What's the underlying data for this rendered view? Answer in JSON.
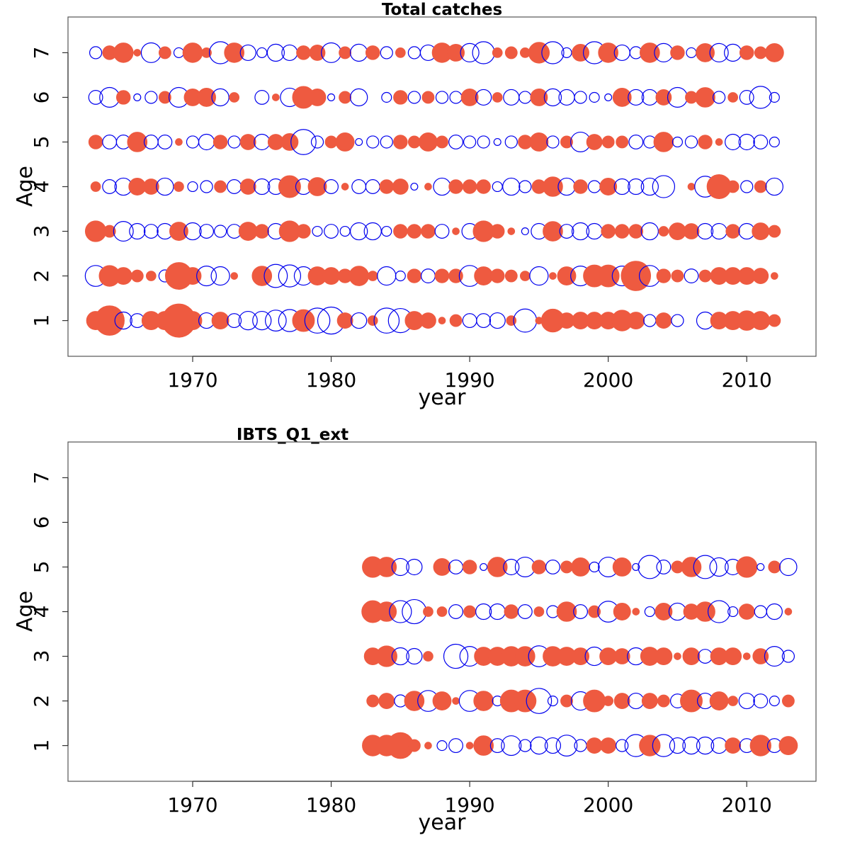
{
  "chart_data": [
    {
      "type": "scatter",
      "subtype": "bubble-residuals",
      "title": "Total catches",
      "xlabel": "year",
      "ylabel": "Age",
      "xlim": [
        1961,
        2015
      ],
      "ylim": [
        0.2,
        7.8
      ],
      "x_ticks": [
        1970,
        1980,
        1990,
        2000,
        2010
      ],
      "y_ticks": [
        1,
        2,
        3,
        4,
        5,
        6,
        7
      ],
      "positive_color": "#EE5A40",
      "negative_color": "#0000EE",
      "years": [
        1963,
        1964,
        1965,
        1966,
        1967,
        1968,
        1969,
        1970,
        1971,
        1972,
        1973,
        1974,
        1975,
        1976,
        1977,
        1978,
        1979,
        1980,
        1981,
        1982,
        1983,
        1984,
        1985,
        1986,
        1987,
        1988,
        1989,
        1990,
        1991,
        1992,
        1993,
        1994,
        1995,
        1996,
        1997,
        1998,
        1999,
        2000,
        2001,
        2002,
        2003,
        2004,
        2005,
        2006,
        2007,
        2008,
        2009,
        2010,
        2011,
        2012
      ],
      "ages": [
        1,
        2,
        3,
        4,
        5,
        6,
        7
      ],
      "residuals_by_age": {
        "1": [
          0.7,
          1.8,
          -0.6,
          -0.4,
          0.7,
          0.7,
          2.3,
          0.7,
          -0.5,
          0.6,
          -0.4,
          -0.7,
          -0.7,
          -0.9,
          -1.0,
          1.0,
          -1.3,
          -1.5,
          0.5,
          -0.5,
          0.2,
          -1.3,
          -1.2,
          0.7,
          0.5,
          0.1,
          0.3,
          -0.4,
          -0.4,
          -0.5,
          0.2,
          -1.1,
          0.1,
          1.1,
          0.5,
          0.6,
          0.6,
          0.6,
          0.9,
          0.6,
          -0.3,
          0.5,
          -0.3,
          0.0,
          -0.6,
          0.6,
          0.7,
          0.8,
          0.7,
          0.3
        ],
        "2": [
          -0.9,
          0.9,
          0.6,
          0.3,
          0.2,
          -0.3,
          1.5,
          0.6,
          -0.8,
          -0.7,
          0.1,
          0.0,
          0.8,
          -1.1,
          -1.0,
          -0.7,
          0.7,
          0.6,
          0.4,
          0.8,
          0.2,
          -0.7,
          -0.2,
          0.4,
          -0.4,
          0.4,
          0.4,
          -0.9,
          0.7,
          0.4,
          0.3,
          0.2,
          -0.7,
          0.1,
          0.7,
          -0.8,
          1.0,
          1.0,
          -0.8,
          1.8,
          -0.9,
          0.4,
          0.3,
          -0.4,
          0.3,
          0.6,
          0.6,
          0.6,
          0.5,
          0.1
        ],
        "3": [
          0.9,
          0.3,
          -0.8,
          -0.5,
          -0.4,
          -0.5,
          0.7,
          -0.6,
          -0.4,
          -0.3,
          -0.4,
          0.7,
          0.4,
          -0.5,
          0.9,
          0.4,
          -0.2,
          -0.4,
          -0.2,
          -0.6,
          -0.6,
          -0.2,
          0.4,
          0.4,
          0.4,
          -0.4,
          0.1,
          -0.5,
          0.9,
          0.4,
          0.1,
          -0.1,
          -0.5,
          0.8,
          -0.4,
          -0.6,
          -0.5,
          0.4,
          0.4,
          0.4,
          -0.6,
          0.2,
          0.6,
          0.5,
          -0.5,
          -0.5,
          0.4,
          -0.5,
          0.6,
          0.3
        ],
        "4": [
          0.2,
          -0.4,
          -0.6,
          0.6,
          0.5,
          -0.6,
          0.2,
          -0.2,
          -0.3,
          0.3,
          -0.4,
          0.5,
          -0.5,
          -0.5,
          1.0,
          -0.5,
          0.7,
          -0.4,
          0.1,
          -0.4,
          -0.4,
          0.4,
          0.5,
          -0.1,
          0.1,
          -0.6,
          0.4,
          0.4,
          0.4,
          -0.2,
          -0.6,
          -0.3,
          0.4,
          0.8,
          -0.6,
          0.4,
          -0.3,
          0.6,
          -0.5,
          -0.5,
          -0.6,
          -1.0,
          0.0,
          0.1,
          -0.9,
          1.2,
          0.3,
          -0.3,
          0.3,
          -0.6
        ],
        "5": [
          0.4,
          -0.4,
          -0.4,
          0.8,
          -0.4,
          -0.4,
          0.1,
          -0.3,
          -0.5,
          0.4,
          -0.3,
          0.5,
          -0.5,
          0.5,
          0.6,
          -1.3,
          -0.3,
          0.3,
          0.7,
          -0.1,
          -0.3,
          -0.3,
          0.4,
          0.3,
          0.7,
          0.3,
          -0.4,
          -0.3,
          -0.3,
          -0.1,
          -0.3,
          0.4,
          0.7,
          -0.3,
          0.3,
          -0.8,
          0.5,
          0.3,
          0.3,
          -0.4,
          -0.3,
          0.8,
          -0.2,
          -0.3,
          0.4,
          0.1,
          -0.5,
          -0.5,
          -0.4,
          -0.2
        ],
        "6": [
          -0.4,
          -0.8,
          0.4,
          -0.1,
          -0.3,
          0.3,
          -0.8,
          0.6,
          0.7,
          -0.6,
          0.2,
          0.0,
          -0.4,
          0.1,
          -0.7,
          1.0,
          0.6,
          -0.1,
          0.3,
          -0.6,
          0.0,
          -0.2,
          0.4,
          -0.3,
          0.3,
          -0.3,
          -0.3,
          0.6,
          -0.5,
          0.2,
          -0.5,
          -0.3,
          0.6,
          -0.6,
          -0.5,
          -0.3,
          -0.2,
          -0.1,
          0.7,
          -0.5,
          -0.5,
          0.5,
          -0.8,
          0.3,
          0.8,
          -0.3,
          0.2,
          -0.4,
          -1.0,
          -0.2
        ],
        "7": [
          -0.3,
          0.4,
          0.8,
          0.1,
          -0.8,
          0.3,
          -0.2,
          0.8,
          0.2,
          -1.0,
          0.8,
          -0.5,
          -0.2,
          -0.6,
          -0.5,
          0.4,
          0.5,
          -0.8,
          0.3,
          -0.6,
          0.4,
          -0.3,
          0.2,
          -0.3,
          -0.5,
          0.8,
          0.6,
          -0.7,
          -1.0,
          0.2,
          0.3,
          0.2,
          0.9,
          -1.0,
          -0.2,
          0.6,
          -1.0,
          0.8,
          -0.5,
          -0.3,
          0.8,
          -0.7,
          0.4,
          -0.2,
          0.7,
          -0.7,
          -0.6,
          0.4,
          0.3,
          0.7
        ]
      }
    },
    {
      "type": "scatter",
      "subtype": "bubble-residuals",
      "title": "IBTS_Q1_ext",
      "xlabel": "year",
      "ylabel": "Age",
      "xlim": [
        1961,
        2015
      ],
      "ylim": [
        0.2,
        7.8
      ],
      "x_ticks": [
        1970,
        1980,
        1990,
        2000,
        2010
      ],
      "y_ticks": [
        1,
        2,
        3,
        4,
        5,
        6,
        7
      ],
      "positive_color": "#EE5A40",
      "negative_color": "#0000EE",
      "years": [
        1983,
        1984,
        1985,
        1986,
        1987,
        1988,
        1989,
        1990,
        1991,
        1992,
        1993,
        1994,
        1995,
        1996,
        1997,
        1998,
        1999,
        2000,
        2001,
        2002,
        2003,
        2004,
        2005,
        2006,
        2007,
        2008,
        2009,
        2010,
        2011,
        2012,
        2013
      ],
      "ages": [
        1,
        2,
        3,
        4,
        5
      ],
      "residuals_by_age": {
        "1": [
          0.9,
          0.9,
          1.4,
          0.3,
          0.1,
          -0.2,
          -0.4,
          0.1,
          0.8,
          -0.4,
          -0.8,
          -0.3,
          -0.6,
          -0.5,
          -0.9,
          -0.3,
          0.5,
          0.5,
          -0.3,
          -1.0,
          0.9,
          -1.0,
          -0.5,
          -0.6,
          -0.6,
          -0.5,
          0.5,
          -0.4,
          0.9,
          -0.4,
          0.7
        ],
        "2": [
          0.3,
          0.5,
          -0.3,
          0.8,
          -0.9,
          0.7,
          0.1,
          -0.9,
          0.8,
          -0.2,
          1.0,
          1.0,
          -1.3,
          -0.2,
          0.3,
          -0.7,
          1.0,
          0.2,
          0.5,
          -0.5,
          0.5,
          0.3,
          -0.4,
          1.0,
          -0.5,
          0.7,
          0.2,
          -0.5,
          -0.4,
          -0.2,
          0.3
        ],
        "3": [
          0.6,
          0.9,
          -0.6,
          -0.5,
          0.2,
          0.0,
          -1.2,
          -0.8,
          0.7,
          0.7,
          0.8,
          0.8,
          -0.9,
          0.8,
          0.7,
          0.6,
          -0.7,
          0.6,
          0.5,
          -0.6,
          0.7,
          0.6,
          0.1,
          0.6,
          -0.4,
          0.6,
          0.6,
          0.1,
          0.5,
          -0.8,
          -0.3
        ],
        "4": [
          1.0,
          0.8,
          -1.0,
          -1.2,
          0.2,
          0.2,
          -0.4,
          0.3,
          -0.5,
          -0.5,
          0.4,
          -0.4,
          0.2,
          -0.3,
          0.8,
          -0.4,
          0.3,
          -0.9,
          0.6,
          0.1,
          -0.2,
          0.6,
          -0.6,
          0.5,
          0.8,
          -1.0,
          -0.2,
          0.5,
          -0.3,
          -0.5,
          0.1
        ],
        "5": [
          0.9,
          0.8,
          -0.6,
          -0.5,
          0.0,
          0.6,
          -0.4,
          0.4,
          -0.1,
          0.8,
          -0.5,
          -0.8,
          0.4,
          -0.4,
          0.3,
          0.7,
          -0.2,
          -0.8,
          0.7,
          -0.1,
          -1.1,
          -0.4,
          0.3,
          0.8,
          -1.1,
          -0.7,
          -0.5,
          0.9,
          -0.1,
          0.3,
          -0.6
        ]
      }
    }
  ]
}
